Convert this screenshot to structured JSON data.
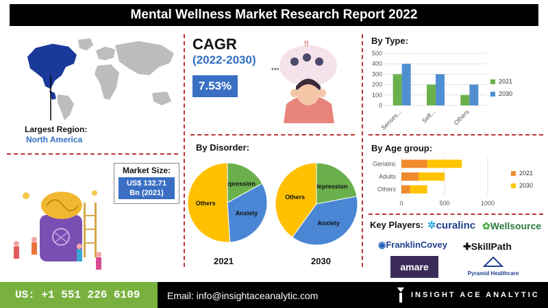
{
  "header": {
    "title": "Mental Wellness Market Research Report 2022"
  },
  "cagr": {
    "label": "CAGR",
    "period": "(2022-2030)",
    "value": "7.53%"
  },
  "region": {
    "label": "Largest Region:",
    "value": "North America"
  },
  "market_size": {
    "label": "Market Size:",
    "value_line1": "US$ 132.71",
    "value_line2": "Bn (2021)"
  },
  "sections": {
    "by_type": "By Type:",
    "by_disorder": "By Disorder:",
    "by_age": "By Age group:",
    "key_players": "Key Players:"
  },
  "key_players": [
    "curalinc",
    "Wellsource",
    "FranklinCovey",
    "SkillPath",
    "amare",
    "Pyramid Healthcare"
  ],
  "footer": {
    "phone": "US: +1 551 226 6109",
    "email": "Email: info@insightaceanalytic.com",
    "brand": "INSIGHT ACE ANALYTIC"
  },
  "colors": {
    "y2021": "#6ab04c",
    "y2030": "#4f8fd1",
    "age2021": "#ef8a2d",
    "age2030": "#ffc300",
    "others": "#ffc000",
    "depression": "#6ab04c",
    "anxiety": "#4a86d4"
  },
  "chart_data": [
    {
      "type": "bar",
      "title": "By Type:",
      "categories": [
        "Senses...",
        "Self...",
        "Others"
      ],
      "series": [
        {
          "name": "2021",
          "values": [
            300,
            200,
            100
          ]
        },
        {
          "name": "2030",
          "values": [
            400,
            300,
            200
          ]
        }
      ],
      "ylim": [
        0,
        500
      ],
      "yticks": [
        0,
        100,
        200,
        300,
        400,
        500
      ],
      "legend": "right"
    },
    {
      "type": "bar",
      "orientation": "horizontal",
      "title": "By Age group:",
      "categories": [
        "Geriatric",
        "Adults",
        "Others"
      ],
      "series": [
        {
          "name": "2021",
          "values": [
            300,
            200,
            100
          ]
        },
        {
          "name": "2030",
          "values": [
            400,
            300,
            200
          ]
        }
      ],
      "stacked": true,
      "xlim": [
        0,
        1000
      ],
      "xticks": [
        0,
        500,
        1000
      ],
      "legend": "right"
    },
    {
      "type": "pie",
      "title": "2021",
      "labels": [
        "Depression",
        "Anxiety",
        "Others"
      ],
      "values": [
        17,
        32,
        51
      ]
    },
    {
      "type": "pie",
      "title": "2030",
      "labels": [
        "Depression",
        "Anxiety",
        "Others"
      ],
      "values": [
        22,
        38,
        40
      ]
    }
  ]
}
